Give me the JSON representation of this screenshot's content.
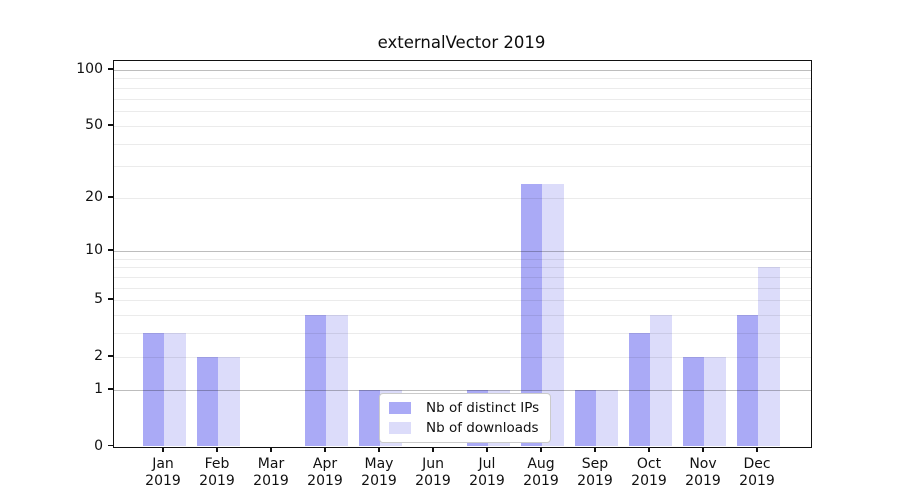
{
  "title": "externalVector 2019",
  "chart_data": {
    "type": "bar",
    "title": "externalVector 2019",
    "categories": [
      "Jan",
      "Feb",
      "Mar",
      "Apr",
      "May",
      "Jun",
      "Jul",
      "Aug",
      "Sep",
      "Oct",
      "Nov",
      "Dec"
    ],
    "category_year": "2019",
    "series": [
      {
        "name": "Nb of distinct IPs",
        "color": "#aaaaf6",
        "values": [
          3,
          2,
          0,
          4,
          1,
          0,
          1,
          24,
          1,
          3,
          2,
          4
        ]
      },
      {
        "name": "Nb of downloads",
        "color": "#dcdcfa",
        "values": [
          3,
          2,
          0,
          4,
          1,
          0,
          1,
          24,
          1,
          4,
          2,
          8
        ]
      }
    ],
    "yscale": "log1p",
    "ylim": [
      0,
      112
    ],
    "yticks": [
      0,
      1,
      2,
      5,
      10,
      20,
      50,
      100
    ],
    "grid_values": [
      1,
      2,
      3,
      4,
      5,
      6,
      7,
      8,
      9,
      10,
      20,
      30,
      40,
      50,
      60,
      70,
      80,
      90,
      100
    ],
    "major_grid_values": [
      1,
      10,
      100
    ],
    "grid": "on",
    "legend_position": "lower-center",
    "frame_color": "#111111",
    "xlabel": "",
    "ylabel": ""
  }
}
